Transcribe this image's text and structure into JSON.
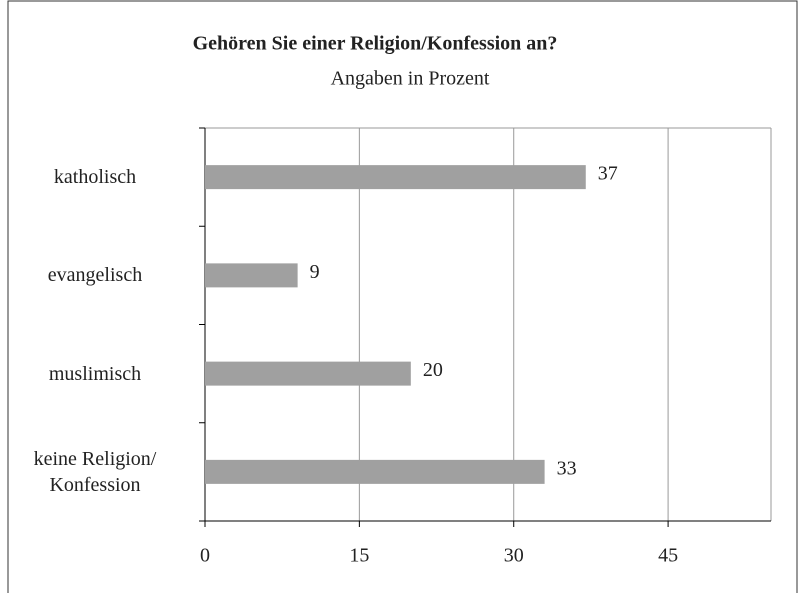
{
  "chart_data": {
    "type": "hbar",
    "title": "Gehören Sie einer Religion/Konfession an?",
    "subtitle": "Angaben in Prozent",
    "categories": [
      "katholisch",
      "evangelisch",
      "muslimisch",
      "keine Religion/\nKonfession"
    ],
    "values": [
      37,
      9,
      20,
      33
    ],
    "color": "#a0a0a0",
    "xlim": [
      0,
      55
    ],
    "xticks": [
      0,
      15,
      30,
      45
    ],
    "grid": true
  }
}
